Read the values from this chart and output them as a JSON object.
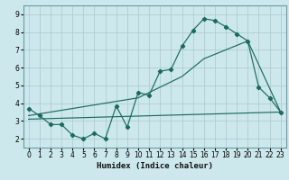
{
  "xlabel": "Humidex (Indice chaleur)",
  "bg_color": "#cce8ec",
  "plot_bg_color": "#cce8ec",
  "grid_color": "#b0cdd1",
  "line_color": "#1a6b5e",
  "xlim": [
    -0.5,
    23.5
  ],
  "ylim": [
    1.5,
    9.5
  ],
  "xticks": [
    0,
    1,
    2,
    3,
    4,
    5,
    6,
    7,
    8,
    9,
    10,
    11,
    12,
    13,
    14,
    15,
    16,
    17,
    18,
    19,
    20,
    21,
    22,
    23
  ],
  "yticks": [
    2,
    3,
    4,
    5,
    6,
    7,
    8,
    9
  ],
  "series1_x": [
    0,
    1,
    2,
    3,
    4,
    5,
    6,
    7,
    8,
    9,
    10,
    11,
    12,
    13,
    14,
    15,
    16,
    17,
    18,
    19,
    20,
    21,
    22,
    23
  ],
  "series1_y": [
    3.7,
    3.3,
    2.8,
    2.8,
    2.2,
    2.0,
    2.3,
    2.0,
    3.85,
    2.65,
    4.6,
    4.45,
    5.8,
    5.9,
    7.2,
    8.1,
    8.75,
    8.65,
    8.3,
    7.9,
    7.5,
    4.9,
    4.3,
    3.5
  ],
  "series2_x": [
    0,
    23
  ],
  "series2_y": [
    3.1,
    3.5
  ],
  "series3_x": [
    0,
    10,
    14,
    16,
    20,
    23
  ],
  "series3_y": [
    3.3,
    4.3,
    5.5,
    6.5,
    7.5,
    3.5
  ],
  "xlabel_fontsize": 6.5,
  "tick_fontsize": 5.5
}
